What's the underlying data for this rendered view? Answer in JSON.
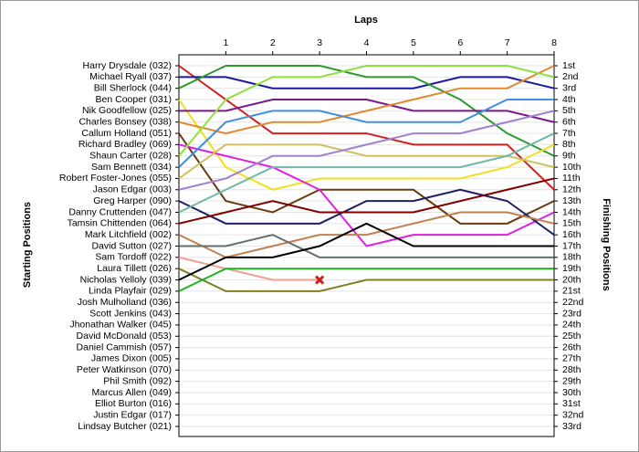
{
  "chart_data": {
    "type": "lap",
    "title": "Laps",
    "y_label": "Starting Positions",
    "y2_label": "Finishing Positions",
    "xlim": [
      0,
      8
    ],
    "xticks": [
      1,
      2,
      3,
      4,
      5,
      6,
      7,
      8
    ],
    "ylim": [
      1,
      33
    ],
    "grid": true,
    "x": [
      0,
      1,
      2,
      3,
      4,
      5,
      6,
      7,
      8
    ],
    "finishing_positions": [
      "1st",
      "2nd",
      "3rd",
      "4th",
      "5th",
      "6th",
      "7th",
      "8th",
      "9th",
      "10th",
      "11th",
      "12th",
      "13th",
      "14th",
      "15th",
      "16th",
      "17th",
      "18th",
      "19th",
      "20th",
      "21st",
      "22nd",
      "23rd",
      "24th",
      "25th",
      "26th",
      "27th",
      "28th",
      "29th",
      "30th",
      "31st",
      "32nd",
      "33rd"
    ],
    "series": [
      {
        "name": "Harry Drysdale (032)",
        "color": "#d62020",
        "values": [
          1,
          4,
          7,
          7,
          7,
          8,
          8,
          8,
          12
        ]
      },
      {
        "name": "Michael Ryall (037)",
        "color": "#1a1aa0",
        "values": [
          2,
          2,
          3,
          3,
          3,
          3,
          2,
          2,
          3
        ]
      },
      {
        "name": "Bill Sherlock (044)",
        "color": "#2e9a2e",
        "values": [
          3,
          1,
          1,
          1,
          2,
          2,
          4,
          7,
          9
        ]
      },
      {
        "name": "Ben Cooper (031)",
        "color": "#f0e020",
        "values": [
          4,
          10,
          12,
          11,
          11,
          11,
          11,
          10,
          8
        ]
      },
      {
        "name": "Nik Goodfellow (025)",
        "color": "#7a1a8a",
        "values": [
          5,
          5,
          4,
          4,
          4,
          5,
          5,
          5,
          6
        ]
      },
      {
        "name": "Charles Bonsey (038)",
        "color": "#e08a30",
        "values": [
          6,
          7,
          6,
          6,
          5,
          4,
          3,
          3,
          1
        ]
      },
      {
        "name": "Callum Holland (051)",
        "color": "#6a3a10",
        "values": [
          7,
          13,
          14,
          12,
          12,
          12,
          15,
          15,
          13
        ]
      },
      {
        "name": "Richard Bradley (069)",
        "color": "#e020e0",
        "values": [
          8,
          9,
          10,
          12,
          17,
          16,
          16,
          16,
          14
        ]
      },
      {
        "name": "Shaun Carter (028)",
        "color": "#90e040",
        "values": [
          9,
          4,
          2,
          2,
          1,
          1,
          1,
          1,
          2
        ]
      },
      {
        "name": "Sam Bennett (034)",
        "color": "#4090e0",
        "values": [
          10,
          6,
          5,
          5,
          6,
          6,
          6,
          4,
          4
        ]
      },
      {
        "name": "Robert Foster-Jones (055)",
        "color": "#d0c060",
        "values": [
          11,
          8,
          8,
          8,
          9,
          9,
          9,
          9,
          10
        ]
      },
      {
        "name": "Jason Edgar (003)",
        "color": "#a080d0",
        "values": [
          12,
          11,
          9,
          9,
          8,
          7,
          7,
          6,
          5
        ]
      },
      {
        "name": "Greg Harper (090)",
        "color": "#202060",
        "values": [
          13,
          15,
          15,
          15,
          13,
          13,
          12,
          13,
          16
        ]
      },
      {
        "name": "Danny Cruttenden (047)",
        "color": "#70b8a8",
        "values": [
          14,
          12,
          10,
          10,
          10,
          10,
          10,
          9,
          7
        ]
      },
      {
        "name": "Tamsin Chittenden (064)",
        "color": "#800000",
        "values": [
          15,
          14,
          13,
          14,
          14,
          14,
          13,
          12,
          11
        ]
      },
      {
        "name": "Mark Litchfield (002)",
        "color": "#c08050",
        "values": [
          16,
          18,
          17,
          16,
          16,
          15,
          14,
          14,
          15
        ]
      },
      {
        "name": "David Sutton (027)",
        "color": "#607070",
        "values": [
          17,
          17,
          16,
          18,
          18,
          18,
          18,
          18,
          18
        ]
      },
      {
        "name": "Sam Tordoff (022)",
        "color": "#f0a090",
        "retired_lap": 3,
        "values": [
          18,
          19,
          20,
          20,
          null,
          null,
          null,
          null,
          null
        ]
      },
      {
        "name": "Laura Tillett (026)",
        "color": "#808020",
        "values": [
          19,
          21,
          21,
          21,
          20,
          20,
          20,
          20,
          20
        ]
      },
      {
        "name": "Nicholas Yelloly (039)",
        "color": "#000000",
        "values": [
          20,
          18,
          18,
          17,
          15,
          17,
          17,
          17,
          17
        ]
      },
      {
        "name": "Linda Playfair (029)",
        "color": "#20b020",
        "values": [
          21,
          19,
          19,
          19,
          19,
          19,
          19,
          19,
          19
        ]
      },
      {
        "name": "Josh Mulholland (036)",
        "color": "#888888",
        "values": [
          null,
          null,
          null,
          null,
          null,
          null,
          null,
          null,
          null
        ]
      },
      {
        "name": "Scott Jenkins (043)",
        "color": "#888888",
        "values": [
          null,
          null,
          null,
          null,
          null,
          null,
          null,
          null,
          null
        ]
      },
      {
        "name": "Jhonathan Walker (045)",
        "color": "#888888",
        "values": [
          null,
          null,
          null,
          null,
          null,
          null,
          null,
          null,
          null
        ]
      },
      {
        "name": "David McDonald (053)",
        "color": "#888888",
        "values": [
          null,
          null,
          null,
          null,
          null,
          null,
          null,
          null,
          null
        ]
      },
      {
        "name": "Daniel Cammish (057)",
        "color": "#888888",
        "values": [
          null,
          null,
          null,
          null,
          null,
          null,
          null,
          null,
          null
        ]
      },
      {
        "name": "James Dixon (005)",
        "color": "#888888",
        "values": [
          null,
          null,
          null,
          null,
          null,
          null,
          null,
          null,
          null
        ]
      },
      {
        "name": "Peter Watkinson (070)",
        "color": "#888888",
        "values": [
          null,
          null,
          null,
          null,
          null,
          null,
          null,
          null,
          null
        ]
      },
      {
        "name": "Phil Smith (092)",
        "color": "#888888",
        "values": [
          null,
          null,
          null,
          null,
          null,
          null,
          null,
          null,
          null
        ]
      },
      {
        "name": "Marcus Allen (049)",
        "color": "#888888",
        "values": [
          null,
          null,
          null,
          null,
          null,
          null,
          null,
          null,
          null
        ]
      },
      {
        "name": "Elliot Burton (016)",
        "color": "#888888",
        "values": [
          null,
          null,
          null,
          null,
          null,
          null,
          null,
          null,
          null
        ]
      },
      {
        "name": "Justin Edgar (017)",
        "color": "#888888",
        "values": [
          null,
          null,
          null,
          null,
          null,
          null,
          null,
          null,
          null
        ]
      },
      {
        "name": "Lindsay Butcher (021)",
        "color": "#888888",
        "values": [
          null,
          null,
          null,
          null,
          null,
          null,
          null,
          null,
          null
        ]
      }
    ]
  }
}
